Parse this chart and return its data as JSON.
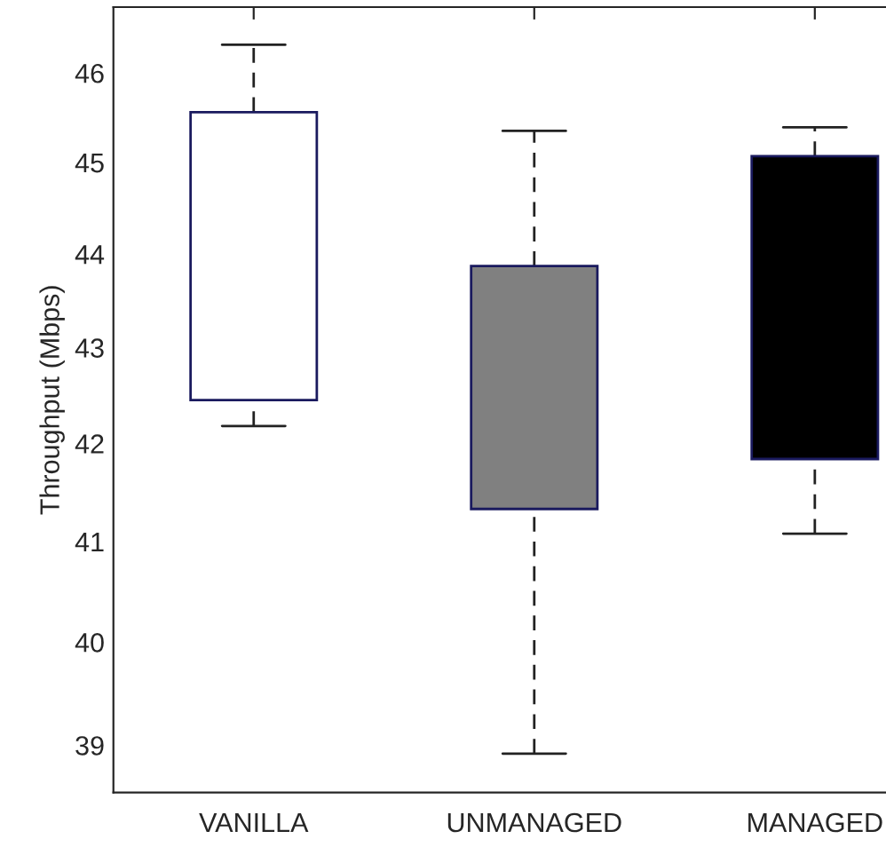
{
  "chart_data": {
    "type": "box",
    "ylabel": "Throughput (Mbps)",
    "log": true,
    "categories": [
      "VANILLA",
      "UNMANAGED",
      "MANAGED"
    ],
    "colors": [
      "#ffffff",
      "#808080",
      "#000000"
    ],
    "boxes": [
      {
        "low": 42.18,
        "q1": 42.45,
        "q3": 45.56,
        "high": 46.32
      },
      {
        "low": 38.92,
        "q1": 41.33,
        "q3": 43.87,
        "high": 45.35
      },
      {
        "low": 41.08,
        "q1": 41.84,
        "q3": 45.07,
        "high": 45.39
      }
    ],
    "ylim": [
      38.55,
      46.75
    ],
    "yticks": [
      39,
      40,
      41,
      42,
      43,
      44,
      45,
      46
    ],
    "grid": false
  }
}
